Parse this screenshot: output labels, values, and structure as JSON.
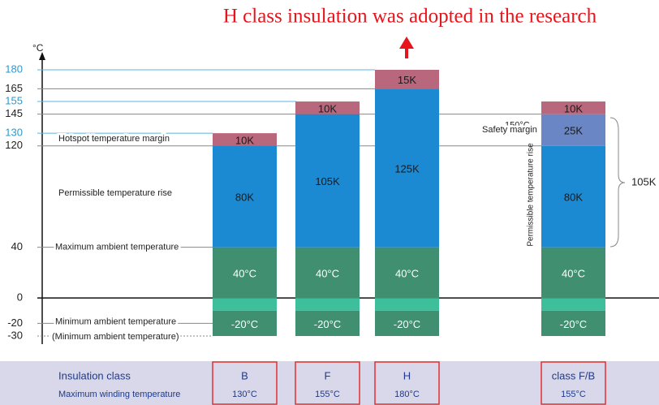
{
  "chart_data": {
    "type": "stacked_bar",
    "title": "H class insulation was adopted in the research",
    "y_unit": "°C",
    "categories": [
      "B",
      "F",
      "H",
      "class F/B"
    ],
    "series": [
      {
        "color": "#3cbf9a",
        "values": [
          -10,
          -10,
          -10,
          -10
        ]
      },
      {
        "color": "#3f8f70",
        "values": [
          -20,
          -20,
          -20,
          -20
        ],
        "value_labels": [
          "-20°C",
          "-20°C",
          "-20°C",
          "-20°C"
        ]
      },
      {
        "color": "#3f8f70",
        "values": [
          40,
          40,
          40,
          40
        ],
        "value_labels": [
          "40°C",
          "40°C",
          "40°C",
          "40°C"
        ]
      },
      {
        "color": "#1b8ad2",
        "values": [
          80,
          105,
          125,
          80
        ],
        "value_labels": [
          "80K",
          "105K",
          "125K",
          "80K"
        ]
      },
      {
        "color": "#6b86c4",
        "values": [
          null,
          null,
          null,
          25
        ],
        "value_labels": [
          null,
          null,
          null,
          "25K"
        ]
      },
      {
        "color": "#b9677c",
        "values": [
          10,
          10,
          15,
          10
        ],
        "value_labels": [
          "10K",
          "10K",
          "15K",
          "10K"
        ]
      }
    ],
    "ylim": [
      -30,
      180
    ],
    "yticks": [
      180,
      165,
      155,
      145,
      130,
      120,
      40,
      0,
      -20,
      -30
    ],
    "annotations": {
      "hotspot": "Hotspot temperature margin",
      "rise": "Permissible temperature rise",
      "max_ambient": "Maximum ambient temperature",
      "min_ambient": "Minimum ambient temperature",
      "min_ambient_paren": "(Minimum ambient temperature)",
      "limit": "150°C",
      "safety": "Safety margin",
      "rise_vertical": "Permissible temperature rise",
      "brace": "105K"
    },
    "table": {
      "row_labels": [
        "Insulation class",
        "Maximum winding temperature"
      ],
      "max_winding_temperature": [
        "130°C",
        "155°C",
        "180°C",
        "155°C"
      ]
    }
  }
}
